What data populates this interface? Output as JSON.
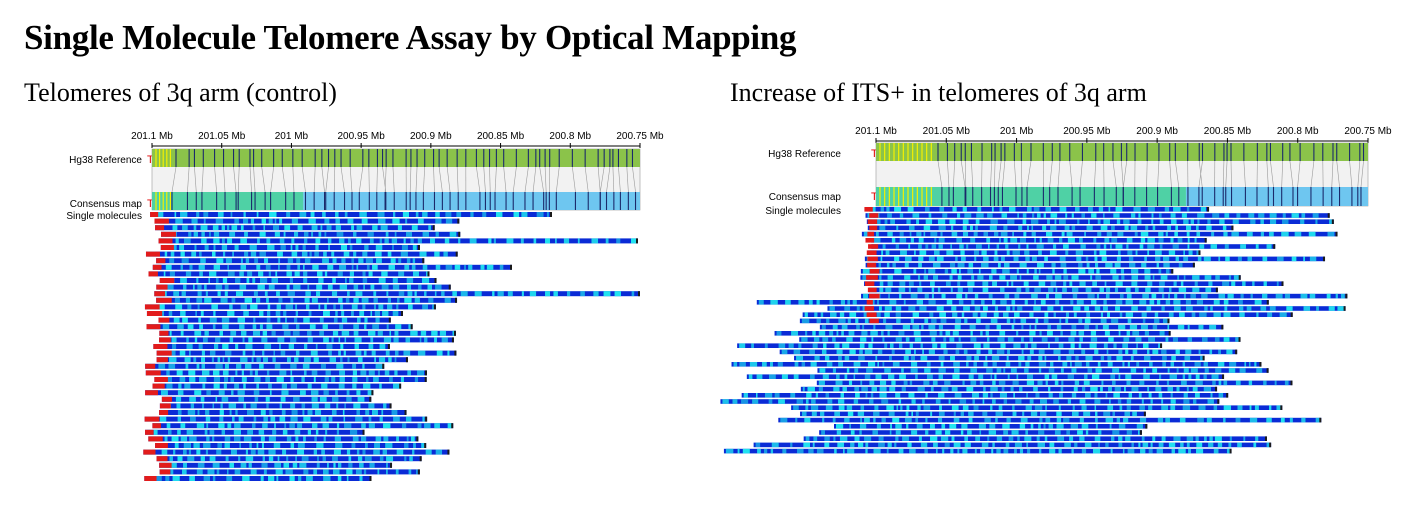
{
  "title": "Single Molecule Telomere Assay by Optical Mapping",
  "panels": [
    {
      "title": "Telomeres of 3q arm (control)",
      "reference_label": "Hg38 Reference",
      "consensus_label": "Consensus map",
      "molecules_label": "Single molecules",
      "telomere_marker": "T",
      "ticks": [
        "201.1 Mb",
        "201.05 Mb",
        "201 Mb",
        "200.95 Mb",
        "200.9 Mb",
        "200.85 Mb",
        "200.8 Mb",
        "200.75 Mb"
      ]
    },
    {
      "title": "Increase of ITS+ in telomeres of 3q arm",
      "reference_label": "Hg38 Reference",
      "consensus_label": "Consensus map",
      "molecules_label": "Single molecules",
      "telomere_marker": "T",
      "ticks": [
        "201.1 Mb",
        "201.05 Mb",
        "201 Mb",
        "200.95 Mb",
        "200.9 Mb",
        "200.85 Mb",
        "200.8 Mb",
        "200.75 Mb"
      ]
    }
  ],
  "colors": {
    "reference_bar": "#8bc34a",
    "consensus_bar_left": "#4fd1a5",
    "consensus_bar_right": "#6ec6f0",
    "label_marks": "#1b2a6b",
    "telomere_red": "#e21b1b",
    "molecule_dark": "#0a2bd6",
    "molecule_cyan": "#22e6f0"
  }
}
